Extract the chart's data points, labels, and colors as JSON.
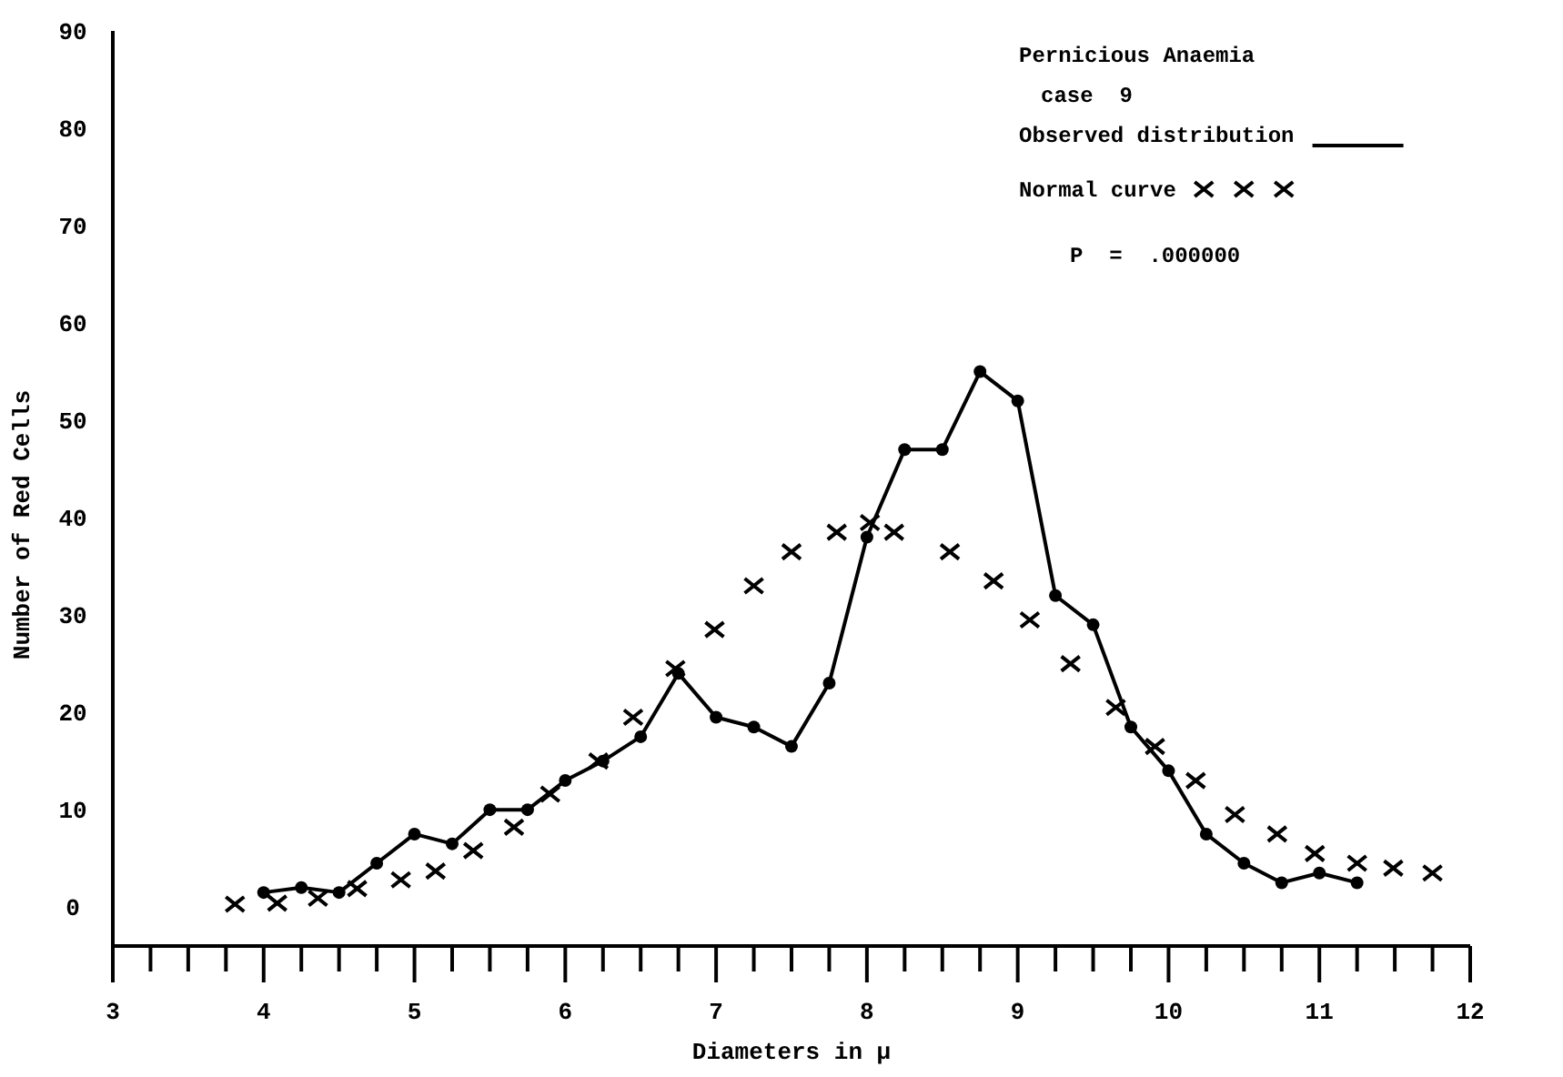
{
  "chart_data": {
    "type": "line",
    "xlabel": "Diameters in μ",
    "ylabel": "Number of Red Cells",
    "annotations": [
      "Pernicious Anaemia",
      "case  9",
      "P  =  .000000"
    ],
    "xlim": [
      3,
      12
    ],
    "ylim": [
      -4,
      90
    ],
    "yticks": [
      0,
      10,
      20,
      30,
      40,
      50,
      60,
      70,
      80,
      90
    ],
    "xticks": [
      3,
      {
        "value": 3.25,
        "label": null
      },
      {
        "value": 3.5,
        "label": null
      },
      {
        "value": 3.75,
        "label": null
      },
      4,
      {
        "value": 4.25,
        "label": null
      },
      {
        "value": 4.5,
        "label": null
      },
      {
        "value": 4.75,
        "label": null
      },
      5,
      {
        "value": 5.25,
        "label": null
      },
      {
        "value": 5.5,
        "label": null
      },
      {
        "value": 5.75,
        "label": null
      },
      6,
      {
        "value": 6.25,
        "label": null
      },
      {
        "value": 6.5,
        "label": null
      },
      {
        "value": 6.75,
        "label": null
      },
      7,
      {
        "value": 7.25,
        "label": null
      },
      {
        "value": 7.5,
        "label": null
      },
      {
        "value": 7.75,
        "label": null
      },
      8,
      {
        "value": 8.25,
        "label": null
      },
      {
        "value": 8.5,
        "label": null
      },
      {
        "value": 8.75,
        "label": null
      },
      9,
      {
        "value": 9.25,
        "label": null
      },
      {
        "value": 9.5,
        "label": null
      },
      {
        "value": 9.75,
        "label": null
      },
      10,
      {
        "value": 10.25,
        "label": null
      },
      {
        "value": 10.5,
        "label": null
      },
      {
        "value": 10.75,
        "label": null
      },
      11,
      {
        "value": 11.25,
        "label": null
      },
      {
        "value": 11.5,
        "label": null
      },
      {
        "value": 11.75,
        "label": null
      },
      12
    ],
    "grid": false,
    "legend": "top right",
    "series": [
      {
        "name": "Observed distribution",
        "marker": "circle",
        "line_style": "solid",
        "color": "#000000",
        "x": [
          4,
          4.25,
          4.5,
          4.75,
          5,
          5.25,
          5.5,
          5.75,
          6,
          6.25,
          6.5,
          6.75,
          7,
          7.25,
          7.5,
          7.75,
          8,
          8.25,
          8.5,
          8.75,
          9,
          9.25,
          9.5,
          9.75,
          10,
          10.25,
          10.5,
          10.75,
          11,
          11.25
        ],
        "values": [
          1.5,
          2,
          1.5,
          4.5,
          7.5,
          6.5,
          10,
          10,
          13,
          15,
          17.5,
          24,
          19.5,
          18.5,
          16.5,
          23,
          38,
          47,
          47,
          55,
          52,
          32,
          29,
          18.5,
          14,
          7.5,
          4.5,
          2.5,
          3.5,
          2.5
        ]
      },
      {
        "name": "Normal curve",
        "type": "scatter",
        "marker": "cross",
        "color": "#000000",
        "x": [
          3.81,
          4.09,
          4.36,
          4.62,
          4.91,
          5.14,
          5.39,
          5.66,
          5.9,
          6.22,
          6.45,
          6.73,
          6.99,
          7.25,
          7.5,
          7.8,
          8.02,
          8.18,
          8.55,
          8.84,
          9.08,
          9.35,
          9.65,
          9.91,
          10.18,
          10.44,
          10.72,
          10.97,
          11.25,
          11.49,
          11.75
        ],
        "values": [
          0.3,
          0.4,
          0.9,
          1.9,
          2.8,
          3.7,
          5.8,
          8.2,
          11.6,
          15,
          19.5,
          24.5,
          28.5,
          33,
          36.5,
          38.5,
          39.5,
          38.5,
          36.5,
          33.5,
          29.5,
          25,
          20.5,
          16.5,
          13,
          9.5,
          7.5,
          5.5,
          4.5,
          4,
          3.5
        ]
      }
    ]
  }
}
